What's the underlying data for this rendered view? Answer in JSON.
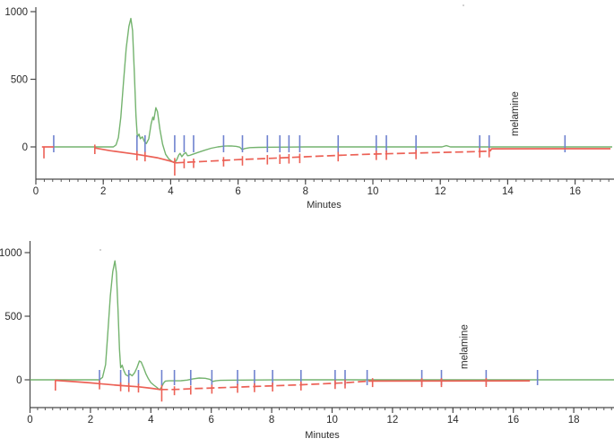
{
  "page": {
    "background": "#ffffff"
  },
  "colors": {
    "green": "#74b36e",
    "red": "#ec6156",
    "blue": "#6f82cf",
    "axis": "#4a4a4a",
    "text": "#2b2b2b",
    "speck": "#9a9a9a"
  },
  "chart_data": [
    {
      "type": "line",
      "title": "",
      "xlabel": "Minutes",
      "ylabel": "",
      "x_major_ticks": [
        0,
        2,
        4,
        6,
        8,
        10,
        12,
        14,
        16
      ],
      "x_minor_step": 0.25,
      "x_max": 17.1,
      "y_ticks": [
        0,
        500,
        1000
      ],
      "y_range": [
        -240,
        1060
      ],
      "grid": false,
      "legend": "none",
      "annotation": {
        "text": "melamine",
        "x_min": 14.2
      },
      "series": {
        "signal": {
          "name": "detector-signal",
          "color_key": "green",
          "points": [
            [
              0.53,
              0
            ],
            [
              1.0,
              0
            ],
            [
              2.0,
              0
            ],
            [
              2.3,
              0
            ],
            [
              2.38,
              15
            ],
            [
              2.45,
              70
            ],
            [
              2.52,
              220
            ],
            [
              2.6,
              480
            ],
            [
              2.68,
              730
            ],
            [
              2.76,
              890
            ],
            [
              2.82,
              950
            ],
            [
              2.87,
              860
            ],
            [
              2.92,
              560
            ],
            [
              2.97,
              230
            ],
            [
              3.01,
              75
            ],
            [
              3.06,
              95
            ],
            [
              3.1,
              60
            ],
            [
              3.16,
              75
            ],
            [
              3.22,
              40
            ],
            [
              3.28,
              25
            ],
            [
              3.35,
              60
            ],
            [
              3.42,
              170
            ],
            [
              3.47,
              220
            ],
            [
              3.5,
              200
            ],
            [
              3.56,
              290
            ],
            [
              3.61,
              260
            ],
            [
              3.68,
              130
            ],
            [
              3.76,
              20
            ],
            [
              3.85,
              -55
            ],
            [
              3.95,
              -90
            ],
            [
              4.05,
              -110
            ],
            [
              4.12,
              -117
            ],
            [
              4.18,
              -95
            ],
            [
              4.24,
              -60
            ],
            [
              4.28,
              -48
            ],
            [
              4.33,
              -72
            ],
            [
              4.4,
              -50
            ],
            [
              4.45,
              -42
            ],
            [
              4.5,
              -65
            ],
            [
              4.57,
              -62
            ],
            [
              4.65,
              -55
            ],
            [
              4.8,
              -42
            ],
            [
              5.0,
              -25
            ],
            [
              5.2,
              -10
            ],
            [
              5.4,
              0
            ],
            [
              5.6,
              6
            ],
            [
              5.8,
              7
            ],
            [
              5.95,
              4
            ],
            [
              6.05,
              -2
            ],
            [
              6.12,
              -20
            ],
            [
              6.2,
              -12
            ],
            [
              6.35,
              -5
            ],
            [
              6.6,
              -3
            ],
            [
              7.0,
              -2
            ],
            [
              7.5,
              -1
            ],
            [
              8.0,
              0
            ],
            [
              10.0,
              0
            ],
            [
              12.05,
              0
            ],
            [
              12.18,
              9
            ],
            [
              12.3,
              0
            ],
            [
              14.0,
              0
            ],
            [
              17.1,
              0
            ]
          ]
        },
        "baseline": {
          "name": "integration-baseline",
          "color_key": "red",
          "segments": [
            {
              "dashed": false,
              "points": [
                [
                  0.18,
                  0
                ],
                [
                  0.53,
                  0
                ]
              ]
            },
            {
              "dashed": false,
              "points": [
                [
                  1.75,
                  -8
                ],
                [
                  2.2,
                  -28
                ],
                [
                  3.0,
                  -55
                ],
                [
                  3.6,
                  -80
                ],
                [
                  4.0,
                  -105
                ],
                [
                  4.15,
                  -118
                ]
              ]
            },
            {
              "dashed": true,
              "points": [
                [
                  4.15,
                  -118
                ],
                [
                  4.6,
                  -112
                ],
                [
                  5.0,
                  -107
                ],
                [
                  6.0,
                  -94
                ],
                [
                  7.0,
                  -84
                ],
                [
                  8.0,
                  -73
                ],
                [
                  9.0,
                  -62
                ],
                [
                  10.0,
                  -53
                ],
                [
                  11.0,
                  -47
                ],
                [
                  12.0,
                  -41
                ],
                [
                  13.0,
                  -35
                ],
                [
                  13.45,
                  -32
                ]
              ]
            },
            {
              "dashed": false,
              "points": [
                [
                  13.48,
                  -32
                ],
                [
                  13.52,
                  -14
                ],
                [
                  17.05,
                  -13
                ]
              ]
            }
          ]
        }
      },
      "peak_markers_x": [
        0.53,
        3.0,
        3.24,
        4.12,
        4.4,
        4.68,
        5.57,
        6.13,
        6.87,
        7.24,
        7.51,
        7.83,
        8.97,
        10.1,
        10.4,
        11.28,
        13.17,
        13.45,
        15.7
      ],
      "baseline_markers": [
        {
          "x": 0.24,
          "kind": "start"
        },
        {
          "x": 1.75,
          "y": -8
        },
        {
          "x": 3.0,
          "y": -55
        },
        {
          "x": 3.24,
          "y": -62
        },
        {
          "x": 4.12,
          "y": -117,
          "kind": "long"
        },
        {
          "x": 4.4,
          "y": -113
        },
        {
          "x": 4.68,
          "y": -111
        },
        {
          "x": 5.57,
          "y": -100
        },
        {
          "x": 6.13,
          "y": -93
        },
        {
          "x": 6.87,
          "y": -85
        },
        {
          "x": 7.24,
          "y": -81
        },
        {
          "x": 7.51,
          "y": -78
        },
        {
          "x": 7.83,
          "y": -75
        },
        {
          "x": 8.97,
          "y": -62
        },
        {
          "x": 10.1,
          "y": -52
        },
        {
          "x": 10.4,
          "y": -51
        },
        {
          "x": 11.28,
          "y": -46
        },
        {
          "x": 13.17,
          "y": -34
        },
        {
          "x": 13.45,
          "y": -32
        }
      ]
    },
    {
      "type": "line",
      "title": "",
      "xlabel": "Minutes",
      "ylabel": "",
      "x_major_ticks": [
        0,
        2,
        4,
        6,
        8,
        10,
        12,
        14,
        16,
        18
      ],
      "x_minor_step": 0.25,
      "x_max": 19.35,
      "y_ticks": [
        0,
        500,
        1000
      ],
      "y_range": [
        -240,
        1060
      ],
      "grid": false,
      "legend": "none",
      "annotation": {
        "text": "melamine",
        "x_min": 14.36
      },
      "series": {
        "signal": {
          "name": "detector-signal",
          "color_key": "green",
          "points": [
            [
              0,
              0
            ],
            [
              1.0,
              0
            ],
            [
              2.0,
              0
            ],
            [
              2.3,
              0
            ],
            [
              2.4,
              20
            ],
            [
              2.5,
              120
            ],
            [
              2.58,
              380
            ],
            [
              2.66,
              660
            ],
            [
              2.74,
              850
            ],
            [
              2.81,
              935
            ],
            [
              2.86,
              840
            ],
            [
              2.91,
              560
            ],
            [
              2.96,
              240
            ],
            [
              3.0,
              95
            ],
            [
              3.05,
              115
            ],
            [
              3.1,
              75
            ],
            [
              3.17,
              40
            ],
            [
              3.24,
              30
            ],
            [
              3.31,
              45
            ],
            [
              3.38,
              32
            ],
            [
              3.46,
              55
            ],
            [
              3.54,
              95
            ],
            [
              3.62,
              148
            ],
            [
              3.68,
              140
            ],
            [
              3.76,
              95
            ],
            [
              3.84,
              45
            ],
            [
              3.92,
              8
            ],
            [
              4.0,
              -22
            ],
            [
              4.1,
              -42
            ],
            [
              4.2,
              -60
            ],
            [
              4.29,
              -78
            ],
            [
              4.36,
              -55
            ],
            [
              4.42,
              -25
            ],
            [
              4.48,
              -10
            ],
            [
              4.6,
              -8
            ],
            [
              4.8,
              -8
            ],
            [
              5.0,
              -7
            ],
            [
              5.2,
              -2
            ],
            [
              5.4,
              8
            ],
            [
              5.6,
              14
            ],
            [
              5.8,
              12
            ],
            [
              5.95,
              4
            ],
            [
              6.05,
              -13
            ],
            [
              6.15,
              -8
            ],
            [
              6.3,
              -4
            ],
            [
              6.6,
              -3
            ],
            [
              7.0,
              -2
            ],
            [
              8.0,
              -1
            ],
            [
              9.0,
              0
            ],
            [
              19.35,
              0
            ]
          ]
        },
        "baseline": {
          "name": "integration-baseline",
          "color_key": "red",
          "segments": [
            {
              "dashed": false,
              "points": [
                [
                  0.84,
                  -4
                ],
                [
                  1.5,
                  -15
                ],
                [
                  2.0,
                  -24
                ],
                [
                  2.3,
                  -30
                ],
                [
                  3.0,
                  -45
                ],
                [
                  3.6,
                  -55
                ],
                [
                  4.0,
                  -66
                ],
                [
                  4.3,
                  -76
                ]
              ]
            },
            {
              "dashed": true,
              "points": [
                [
                  4.3,
                  -76
                ],
                [
                  4.7,
                  -76
                ],
                [
                  5.0,
                  -74
                ],
                [
                  5.35,
                  -70
                ],
                [
                  6.05,
                  -64
                ],
                [
                  6.9,
                  -57
                ],
                [
                  7.45,
                  -52
                ],
                [
                  8.05,
                  -47
                ],
                [
                  9.0,
                  -39
                ],
                [
                  10.1,
                  -27
                ],
                [
                  10.45,
                  -23
                ],
                [
                  11.2,
                  -10
                ]
              ]
            },
            {
              "dashed": false,
              "points": [
                [
                  11.2,
                  -10
                ],
                [
                  16.55,
                  -8
                ]
              ]
            }
          ]
        }
      },
      "peak_markers_x": [
        2.3,
        3.0,
        3.27,
        3.59,
        4.36,
        4.78,
        5.32,
        6.02,
        6.87,
        7.43,
        8.03,
        8.97,
        10.1,
        10.43,
        11.16,
        12.97,
        13.62,
        15.1,
        16.8
      ],
      "baseline_markers": [
        {
          "x": 0.84,
          "kind": "start"
        },
        {
          "x": 2.3,
          "y": -30
        },
        {
          "x": 3.0,
          "y": -45
        },
        {
          "x": 3.27,
          "y": -50
        },
        {
          "x": 3.59,
          "y": -55
        },
        {
          "x": 4.36,
          "y": -76,
          "kind": "long"
        },
        {
          "x": 4.78,
          "y": -76
        },
        {
          "x": 5.32,
          "y": -71
        },
        {
          "x": 6.02,
          "y": -64
        },
        {
          "x": 6.87,
          "y": -57
        },
        {
          "x": 7.43,
          "y": -52
        },
        {
          "x": 8.03,
          "y": -47
        },
        {
          "x": 8.97,
          "y": -39
        },
        {
          "x": 10.1,
          "y": -27
        },
        {
          "x": 10.43,
          "y": -23
        },
        {
          "x": 11.34,
          "y": -12
        },
        {
          "x": 12.97,
          "y": -12
        },
        {
          "x": 13.62,
          "y": -12
        },
        {
          "x": 15.1,
          "y": -11
        }
      ]
    }
  ]
}
